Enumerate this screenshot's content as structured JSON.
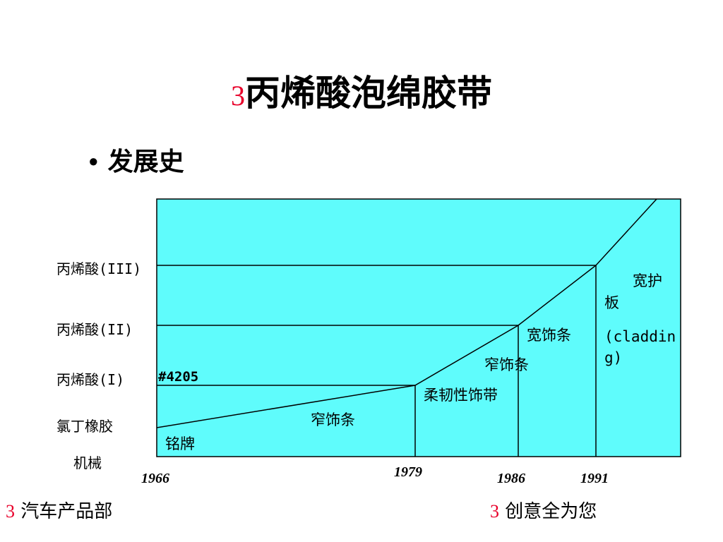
{
  "title": {
    "number": "3",
    "text": "丙烯酸泡绵胶带"
  },
  "bullet": {
    "symbol": "•",
    "text": "发展史"
  },
  "diagram": {
    "y_labels": [
      "丙烯酸(III)",
      "丙烯酸(II)",
      "丙烯酸(I)",
      "氯丁橡胶",
      "机械"
    ],
    "x_labels": [
      "1966",
      "1979",
      "1986",
      "1991"
    ],
    "region_labels": {
      "code": "#4205",
      "nameplate": "铭牌",
      "narrow_trim_1": "窄饰条",
      "flexible_trim": "柔韧性饰带",
      "narrow_trim_2": "窄饰条",
      "wide_trim": "宽饰条",
      "wide_panel_1": "宽护",
      "wide_panel_2": "板",
      "cladding_1": "(claddin",
      "cladding_2": "g)"
    },
    "colors": {
      "fill": "#5ffcfc",
      "stroke": "#000000"
    }
  },
  "footer": {
    "left": {
      "number": "3",
      "text": "汽车产品部"
    },
    "right": {
      "number": "3",
      "text": "创意全为您"
    }
  }
}
